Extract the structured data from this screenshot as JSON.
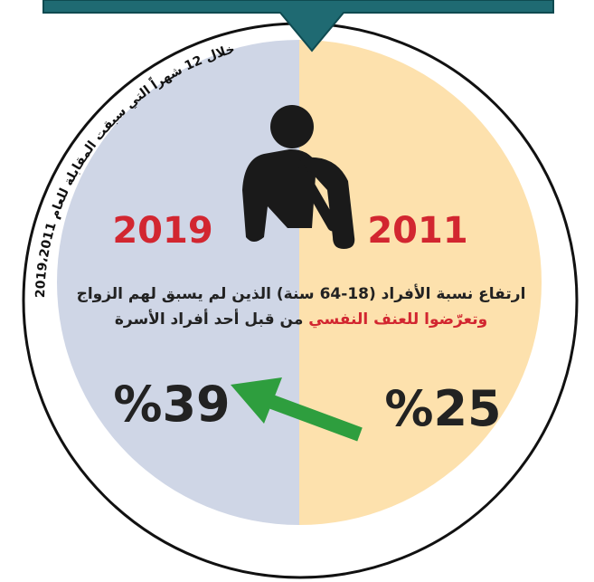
{
  "arc_caption": "خلال 12 شهراً التي سبقت المقابلة للعام 2019،2011",
  "years": [
    "2019",
    "2011"
  ],
  "statement": {
    "line1": "ارتفاع نسبة الأفراد (18-64 سنة) الذين لم يسبق لهم الزواج",
    "line2_highlight": "وتعرّضوا للعنف النفسي",
    "line2_rest": " من قبل أحد أفراد الأسرة"
  },
  "percentages": [
    "%39",
    "%25"
  ]
}
